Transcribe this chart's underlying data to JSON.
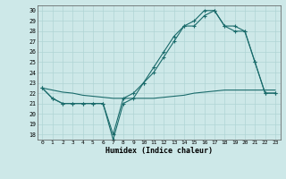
{
  "xlabel": "Humidex (Indice chaleur)",
  "xlim": [
    -0.5,
    23.5
  ],
  "ylim": [
    17.5,
    30.5
  ],
  "yticks": [
    18,
    19,
    20,
    21,
    22,
    23,
    24,
    25,
    26,
    27,
    28,
    29,
    30
  ],
  "xticks": [
    0,
    1,
    2,
    3,
    4,
    5,
    6,
    7,
    8,
    9,
    10,
    11,
    12,
    13,
    14,
    15,
    16,
    17,
    18,
    19,
    20,
    21,
    22,
    23
  ],
  "bg_color": "#cde8e8",
  "line_color": "#1a6b6b",
  "curve1_x": [
    0,
    1,
    2,
    3,
    4,
    5,
    6,
    7,
    8,
    9,
    10,
    11,
    12,
    13,
    14,
    15,
    16,
    17,
    18,
    19,
    20,
    21,
    22,
    23
  ],
  "curve1_y": [
    22.5,
    21.5,
    21.0,
    21.0,
    21.0,
    21.0,
    21.0,
    17.5,
    21.0,
    21.5,
    23.0,
    24.0,
    25.5,
    27.0,
    28.5,
    28.5,
    29.5,
    30.0,
    28.5,
    28.0,
    28.0,
    25.0,
    22.0,
    22.0
  ],
  "curve2_x": [
    0,
    1,
    2,
    3,
    4,
    5,
    6,
    7,
    8,
    9,
    10,
    11,
    12,
    13,
    14,
    15,
    16,
    17,
    18,
    19,
    20,
    21,
    22,
    23
  ],
  "curve2_y": [
    22.5,
    21.5,
    21.0,
    21.0,
    21.0,
    21.0,
    21.0,
    18.0,
    21.5,
    22.0,
    23.0,
    24.5,
    26.0,
    27.5,
    28.5,
    29.0,
    30.0,
    30.0,
    28.5,
    28.5,
    28.0,
    25.0,
    22.0,
    22.0
  ],
  "curve3_x": [
    0,
    1,
    2,
    3,
    4,
    5,
    6,
    7,
    8,
    9,
    10,
    11,
    12,
    13,
    14,
    15,
    16,
    17,
    18,
    19,
    20,
    21,
    22,
    23
  ],
  "curve3_y": [
    22.5,
    22.3,
    22.1,
    22.0,
    21.8,
    21.7,
    21.6,
    21.5,
    21.5,
    21.5,
    21.5,
    21.5,
    21.6,
    21.7,
    21.8,
    22.0,
    22.1,
    22.2,
    22.3,
    22.3,
    22.3,
    22.3,
    22.3,
    22.3
  ]
}
